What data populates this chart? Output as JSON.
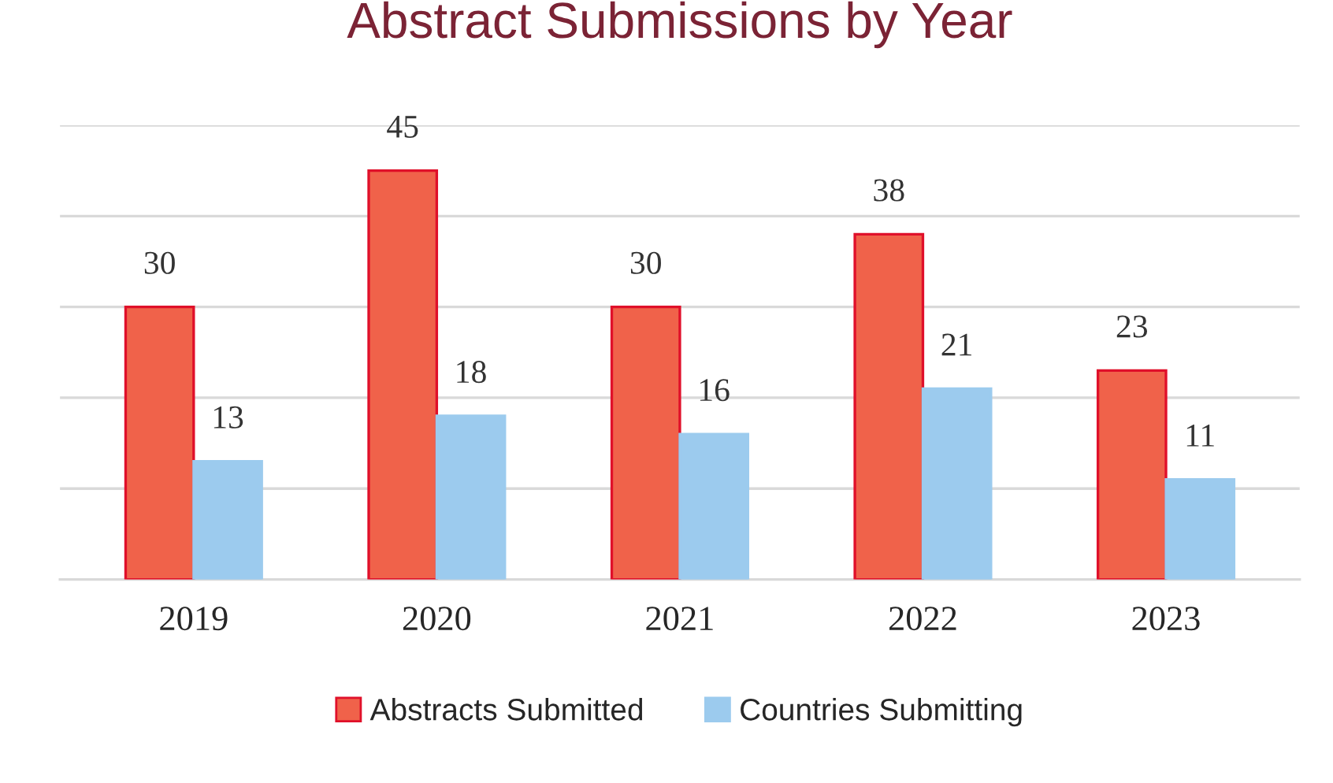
{
  "chart_data": {
    "type": "bar",
    "title": "Abstract Submissions by Year",
    "categories": [
      "2019",
      "2020",
      "2021",
      "2022",
      "2023"
    ],
    "series": [
      {
        "name": "Abstracts Submitted",
        "color": "#f0624a",
        "values": [
          30,
          45,
          30,
          38,
          23
        ]
      },
      {
        "name": "Countries Submitting",
        "color": "#9ccbee",
        "values": [
          13,
          18,
          16,
          21,
          11
        ]
      }
    ],
    "ylim": [
      0,
      50
    ],
    "yticks": [
      {
        "value": 0,
        "label": null
      },
      {
        "value": 10,
        "label": null
      },
      {
        "value": 20,
        "label": null
      },
      {
        "value": 30,
        "label": null
      },
      {
        "value": 40,
        "label": null
      },
      {
        "value": 50,
        "label": null
      }
    ],
    "tick_labels": "x",
    "grid": "y",
    "legend": "bottom",
    "data_labels": true
  }
}
